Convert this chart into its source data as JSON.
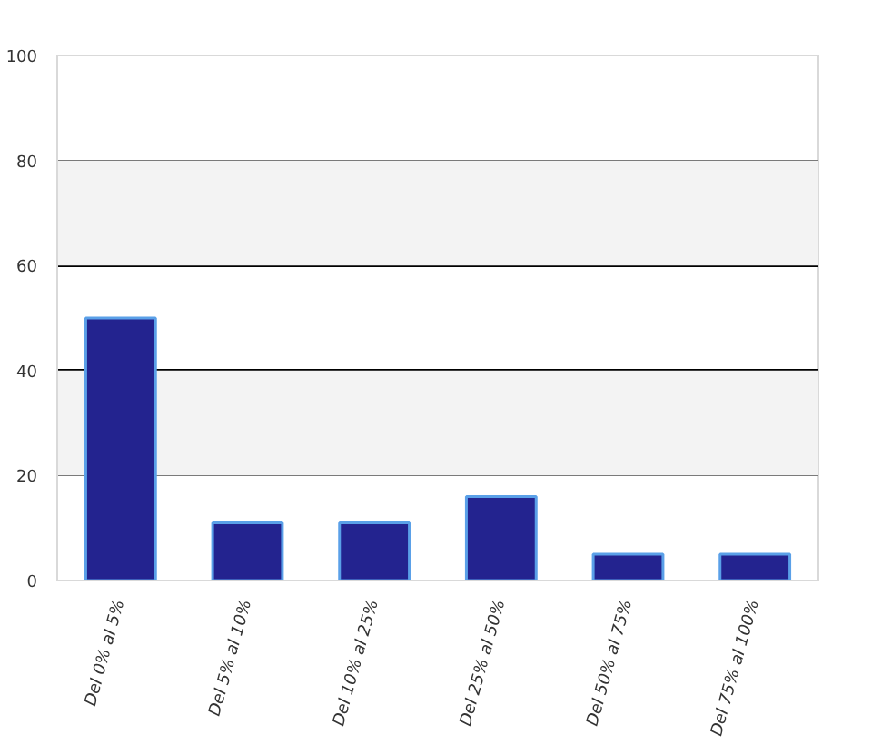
{
  "chart_data": {
    "type": "bar",
    "categories": [
      "Del 0% al 5%",
      "Del 5% al 10%",
      "Del 10% al 25%",
      "Del 25% al 50%",
      "Del 50% al 75%",
      "Del 75% al 100%"
    ],
    "values": [
      50,
      11,
      11,
      16,
      5,
      5
    ],
    "color": "#23238f",
    "ylim": [
      0,
      100
    ],
    "yticks": [
      0,
      20,
      40,
      60,
      80,
      100
    ],
    "grid": "y",
    "bands": [
      {
        "axis": "y",
        "from": 20,
        "to": 40,
        "color": "#f3f3f3"
      },
      {
        "axis": "y",
        "from": 60,
        "to": 80,
        "color": "#f3f3f3"
      }
    ]
  }
}
